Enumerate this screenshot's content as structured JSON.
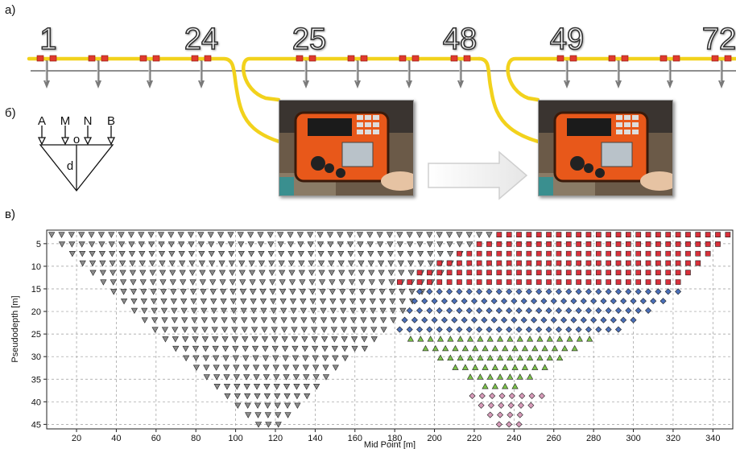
{
  "panels": {
    "a": "а)",
    "b": "б)",
    "c": "в)"
  },
  "electrode_numbers": [
    "1",
    "24",
    "25",
    "48",
    "49",
    "72"
  ],
  "array_scheme": {
    "electrodes": [
      "A",
      "M",
      "N",
      "B"
    ],
    "center_label": "o",
    "depth_label": "d"
  },
  "colors": {
    "cable": "#f2d21c",
    "connector": "#e03a2e",
    "device": "#e8581a",
    "series_gray": "#8c8c8c",
    "series_red": "#d9303a",
    "series_blue": "#4a6fb8",
    "series_green": "#7cc24a",
    "series_pink": "#d69ab8"
  },
  "icons": {
    "arrow": "right-arrow-icon",
    "photo": "resistivity-meter-photo"
  },
  "chart_data": {
    "type": "scatter",
    "xlabel": "Mid Point [m]",
    "ylabel": "Pseudodepth [m]",
    "xlim": [
      5,
      350
    ],
    "ylim": [
      46,
      2
    ],
    "x_ticks": [
      20,
      40,
      60,
      80,
      100,
      120,
      140,
      160,
      180,
      200,
      220,
      240,
      260,
      280,
      300,
      320,
      340
    ],
    "y_ticks": [
      5,
      10,
      15,
      20,
      25,
      30,
      35,
      40,
      45
    ],
    "grid": true,
    "electrode_spacing": 5,
    "pseudodepth_step": 2.1,
    "levels": 21,
    "series": [
      {
        "marker": "triangle-down",
        "color": "#8c8c8c",
        "x_range": [
          10,
          227.5
        ],
        "level_range": [
          1,
          21
        ]
      },
      {
        "marker": "square",
        "color": "#d9303a",
        "x_range": [
          232.5,
          347.5
        ],
        "level_range": [
          1,
          21
        ]
      },
      {
        "marker": "square",
        "color": "#d9303a",
        "x_range": [
          182.5,
          347.5
        ],
        "level_range": [
          1,
          6
        ],
        "bound": "right-edge"
      },
      {
        "marker": "diamond",
        "color": "#4a6fb8",
        "x_range": [
          182.5,
          347.5
        ],
        "level_range": [
          7,
          11
        ]
      },
      {
        "marker": "triangle-up",
        "color": "#7cc24a",
        "x_range": [
          182.5,
          347.5
        ],
        "level_range": [
          12,
          17
        ]
      },
      {
        "marker": "diamond",
        "color": "#d69ab8",
        "x_range": [
          182.5,
          347.5
        ],
        "level_range": [
          18,
          21
        ]
      }
    ]
  }
}
